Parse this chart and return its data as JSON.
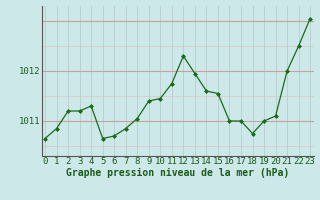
{
  "hours": [
    0,
    1,
    2,
    3,
    4,
    5,
    6,
    7,
    8,
    9,
    10,
    11,
    12,
    13,
    14,
    15,
    16,
    17,
    18,
    19,
    20,
    21,
    22,
    23
  ],
  "pressure": [
    1010.65,
    1010.85,
    1011.2,
    1011.2,
    1011.3,
    1010.65,
    1010.7,
    1010.85,
    1011.05,
    1011.4,
    1011.45,
    1011.75,
    1012.3,
    1011.95,
    1011.6,
    1011.55,
    1011.0,
    1011.0,
    1010.75,
    1011.0,
    1011.1,
    1012.0,
    1012.5,
    1013.05
  ],
  "line_color": "#1a6b1a",
  "marker_color": "#1a6b1a",
  "bg_color": "#cce8e8",
  "grid_color_h_major": "#c8a0a0",
  "grid_color_h_minor": "#ddc8c8",
  "grid_color_v": "#b8cccc",
  "xlabel_label": "Graphe pression niveau de la mer (hPa)",
  "xlabel_color": "#1a5c1a",
  "ylim": [
    1010.3,
    1013.3
  ],
  "ytick_positions": [
    1011.0,
    1012.0
  ],
  "ytick_labels": [
    "1011",
    "1012"
  ],
  "label_fontsize": 7,
  "tick_fontsize": 6.5
}
